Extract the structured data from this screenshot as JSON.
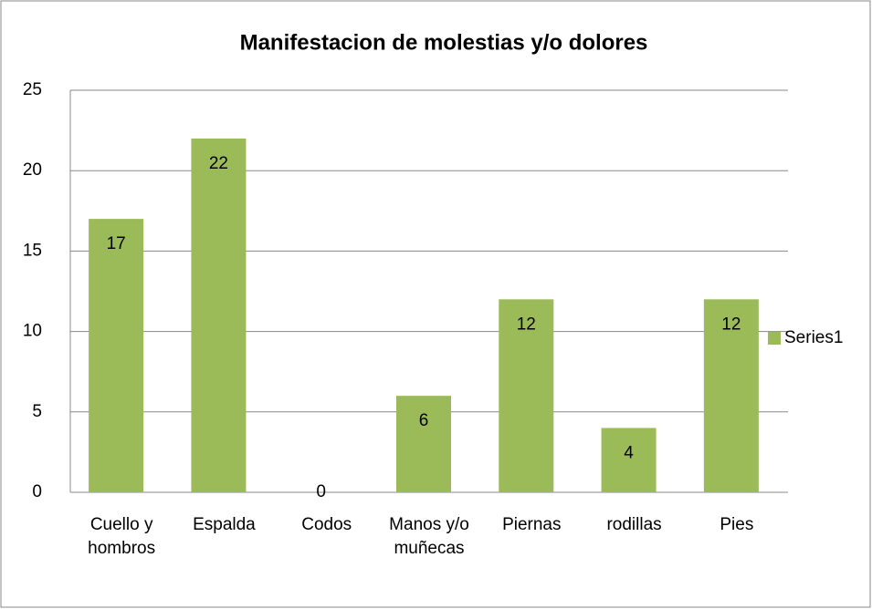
{
  "chart_data": {
    "type": "bar",
    "title": "Manifestacion de molestias y/o dolores",
    "categories": [
      "Cuello y hombros",
      "Espalda",
      "Codos",
      "Manos y/o muñecas",
      "Piernas",
      "rodillas",
      "Pies"
    ],
    "series": [
      {
        "name": "Series1",
        "color": "#9bbb59",
        "values": [
          17,
          22,
          0,
          6,
          12,
          4,
          12
        ]
      }
    ],
    "ylim": [
      0,
      25
    ],
    "yticks": [
      0,
      5,
      10,
      15,
      20,
      25
    ],
    "grid": true,
    "legend": "right"
  }
}
